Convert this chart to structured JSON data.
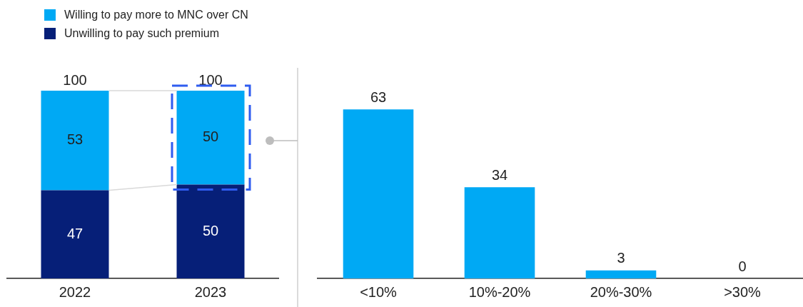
{
  "chart_data": [
    {
      "type": "bar",
      "stacked": true,
      "categories": [
        "2022",
        "2023"
      ],
      "series": [
        {
          "name": "Unwilling to pay such premium",
          "color": "#061f78",
          "values": [
            47,
            50
          ]
        },
        {
          "name": "Willing to pay more to MNC over CN",
          "color": "#00a9f4",
          "values": [
            53,
            50
          ]
        }
      ],
      "data_labels": true,
      "totals": [
        "100",
        "100"
      ],
      "legend": "top left"
    },
    {
      "type": "bar",
      "categories": [
        "<10%",
        "10%-20%",
        "20%-30%",
        ">30%"
      ],
      "values": [
        63,
        34,
        3,
        0
      ],
      "color": "#00a9f4",
      "data_labels": true
    }
  ]
}
